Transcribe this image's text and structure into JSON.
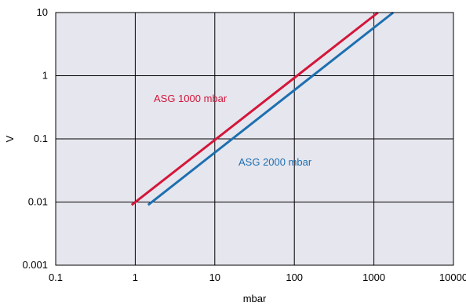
{
  "chart_data": {
    "type": "line",
    "title": "",
    "xlabel": "mbar",
    "ylabel": "V",
    "x_scale": "log",
    "y_scale": "log",
    "xlim": [
      0.1,
      10000
    ],
    "ylim": [
      0.001,
      10
    ],
    "grid": true,
    "background_color": "#e6e6ee",
    "x_ticks": [
      "0.1",
      "1",
      "10",
      "100",
      "1000",
      "10000"
    ],
    "y_ticks": [
      "0.001",
      "0.01",
      "0.1",
      "1",
      "10"
    ],
    "series": [
      {
        "name": "ASG 1000 mbar",
        "color": "#d4163a",
        "x": [
          0.9,
          1125
        ],
        "y": [
          0.009,
          10
        ]
      },
      {
        "name": "ASG 2000 mbar",
        "color": "#1d6fb0",
        "x": [
          1.45,
          1750
        ],
        "y": [
          0.009,
          10
        ]
      }
    ]
  }
}
